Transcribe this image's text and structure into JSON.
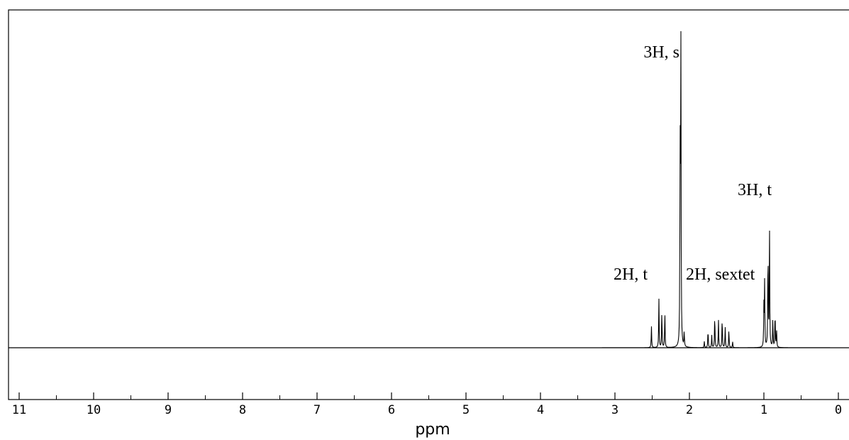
{
  "chart_data": {
    "type": "line",
    "title": "",
    "xlabel": "ppm",
    "ylabel": "",
    "xlim": [
      11.0,
      0.0
    ],
    "x_reversed": true,
    "grid": false,
    "x_ticks": [
      "11",
      "10",
      "9",
      "8",
      "7",
      "6",
      "5",
      "4",
      "3",
      "2",
      "1",
      "0"
    ],
    "x_tick_values": [
      11,
      10,
      9,
      8,
      7,
      6,
      5,
      4,
      3,
      2,
      1,
      0
    ],
    "line_color": "#000000",
    "annotations": [
      {
        "text": "3H, s",
        "x": 2.12
      },
      {
        "text": "3H, t",
        "x": 0.93
      },
      {
        "text": "2H, t",
        "x": 2.41
      },
      {
        "text": "2H, sextet",
        "x": 1.6
      }
    ],
    "series": [
      {
        "peaks": [
          {
            "x": 2.51,
            "y": 0.07
          },
          {
            "x": 2.41,
            "y": 0.16
          },
          {
            "x": 2.37,
            "y": 0.12
          },
          {
            "x": 2.33,
            "y": 0.12
          },
          {
            "x": 2.125,
            "y": 0.65
          },
          {
            "x": 2.115,
            "y": 1.0
          },
          {
            "x": 2.07,
            "y": 0.05
          },
          {
            "x": 1.8,
            "y": 0.02
          },
          {
            "x": 1.75,
            "y": 0.06
          },
          {
            "x": 1.7,
            "y": 0.04
          },
          {
            "x": 1.66,
            "y": 0.11
          },
          {
            "x": 1.61,
            "y": 0.09
          },
          {
            "x": 1.56,
            "y": 0.1
          },
          {
            "x": 1.52,
            "y": 0.07
          },
          {
            "x": 1.47,
            "y": 0.06
          },
          {
            "x": 1.42,
            "y": 0.02
          },
          {
            "x": 1.0,
            "y": 0.13
          },
          {
            "x": 0.99,
            "y": 0.21
          },
          {
            "x": 0.945,
            "y": 0.34
          },
          {
            "x": 0.925,
            "y": 0.41
          },
          {
            "x": 0.88,
            "y": 0.09
          },
          {
            "x": 0.85,
            "y": 0.12
          },
          {
            "x": 0.83,
            "y": 0.06
          }
        ]
      }
    ]
  }
}
